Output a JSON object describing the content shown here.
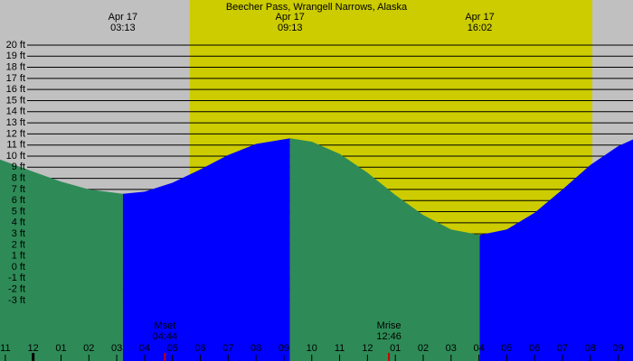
{
  "chart_data": {
    "type": "area",
    "title": "Beecher Pass, Wrangell Narrows, Alaska",
    "xlim": [
      -1.19,
      21.53
    ],
    "ylim": [
      -8.45,
      24.06
    ],
    "background_color": "#c0c0c0",
    "daylight": [
      5.62,
      20.07
    ],
    "daylight_color": "#cccc00",
    "grid": true,
    "yticks": [
      {
        "value": 20,
        "label": "20 ft"
      },
      {
        "value": 19,
        "label": "19 ft"
      },
      {
        "value": 18,
        "label": "18 ft"
      },
      {
        "value": 17,
        "label": "17 ft"
      },
      {
        "value": 16,
        "label": "16 ft"
      },
      {
        "value": 15,
        "label": "15 ft"
      },
      {
        "value": 14,
        "label": "14 ft"
      },
      {
        "value": 13,
        "label": "13 ft"
      },
      {
        "value": 12,
        "label": "12 ft"
      },
      {
        "value": 11,
        "label": "11 ft"
      },
      {
        "value": 10,
        "label": "10 ft"
      },
      {
        "value": 9,
        "label": "9 ft"
      },
      {
        "value": 8,
        "label": "8 ft"
      },
      {
        "value": 7,
        "label": "7 ft"
      },
      {
        "value": 6,
        "label": "6 ft"
      },
      {
        "value": 5,
        "label": "5 ft"
      },
      {
        "value": 4,
        "label": "4 ft"
      },
      {
        "value": 3,
        "label": "3 ft"
      },
      {
        "value": 2,
        "label": "2 ft"
      },
      {
        "value": 1,
        "label": "1 ft"
      },
      {
        "value": 0,
        "label": "0 ft"
      },
      {
        "value": -1,
        "label": "-1 ft"
      },
      {
        "value": -2,
        "label": "-2 ft"
      },
      {
        "value": -3,
        "label": "-3 ft"
      }
    ],
    "xticks": [
      {
        "value": -1,
        "label": "11"
      },
      {
        "value": 0,
        "label": "12"
      },
      {
        "value": 1,
        "label": "01"
      },
      {
        "value": 2,
        "label": "02"
      },
      {
        "value": 3,
        "label": "03"
      },
      {
        "value": 4,
        "label": "04"
      },
      {
        "value": 5,
        "label": "05"
      },
      {
        "value": 6,
        "label": "06"
      },
      {
        "value": 7,
        "label": "07"
      },
      {
        "value": 8,
        "label": "08"
      },
      {
        "value": 9,
        "label": "09"
      },
      {
        "value": 10,
        "label": "10"
      },
      {
        "value": 11,
        "label": "11"
      },
      {
        "value": 12,
        "label": "12"
      },
      {
        "value": 13,
        "label": "01"
      },
      {
        "value": 14,
        "label": "02"
      },
      {
        "value": 15,
        "label": "03"
      },
      {
        "value": 16,
        "label": "04"
      },
      {
        "value": 17,
        "label": "05"
      },
      {
        "value": 18,
        "label": "06"
      },
      {
        "value": 19,
        "label": "07"
      },
      {
        "value": 20,
        "label": "08"
      },
      {
        "value": 21,
        "label": "09"
      }
    ],
    "midnight": 0,
    "series": [
      {
        "color": "#2e8b57",
        "x": [
          -1.19,
          0,
          1,
          2,
          3.22
        ],
        "values": [
          9.7,
          8.6,
          7.7,
          7.0,
          6.6
        ]
      },
      {
        "color": "#0000ff",
        "x": [
          3.22,
          4,
          5,
          6,
          7,
          8,
          9.22
        ],
        "values": [
          6.6,
          6.8,
          7.6,
          8.8,
          10.1,
          11.1,
          11.6
        ]
      },
      {
        "color": "#2e8b57",
        "x": [
          9.22,
          10,
          11,
          12,
          13,
          14,
          15,
          16.03
        ],
        "values": [
          11.6,
          11.3,
          10.2,
          8.5,
          6.5,
          4.7,
          3.4,
          2.9
        ]
      },
      {
        "color": "#0000ff",
        "x": [
          16.03,
          17,
          18,
          19,
          20,
          21,
          21.53
        ],
        "values": [
          2.9,
          3.4,
          4.9,
          7.0,
          9.2,
          10.9,
          11.5
        ]
      }
    ],
    "extremes": [
      {
        "x": 3.22,
        "date": "Apr 17",
        "time": "03:13"
      },
      {
        "x": 9.22,
        "date": "Apr 17",
        "time": "09:13"
      },
      {
        "x": 16.03,
        "date": "Apr 17",
        "time": "16:02"
      }
    ],
    "moon_events": [
      {
        "x": 4.73,
        "label": "Mset",
        "time": "04:44"
      },
      {
        "x": 12.77,
        "label": "Mrise",
        "time": "12:46"
      }
    ],
    "moon_color": "#cc0000"
  }
}
